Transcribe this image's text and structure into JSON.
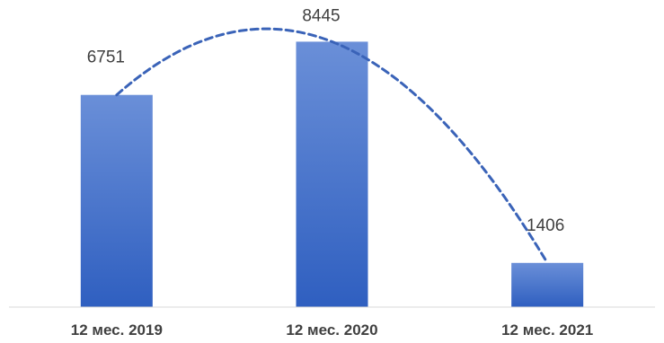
{
  "chart_data": {
    "type": "bar",
    "categories": [
      "12 мес. 2019",
      "12 мес. 2020",
      "12 мес. 2021"
    ],
    "values": [
      6751,
      8445,
      1406
    ],
    "data_labels": [
      "6751",
      "8445",
      "1406"
    ],
    "ylim": [
      0,
      9600
    ],
    "grid": false,
    "legend": "none",
    "trendline": {
      "type": "polynomial",
      "style": "dashed"
    },
    "colors": {
      "bar_top": "#6a8fd8",
      "bar_bottom": "#2f5fc0",
      "trendline": "#3a63b8",
      "baseline": "#d9d9d9"
    }
  }
}
